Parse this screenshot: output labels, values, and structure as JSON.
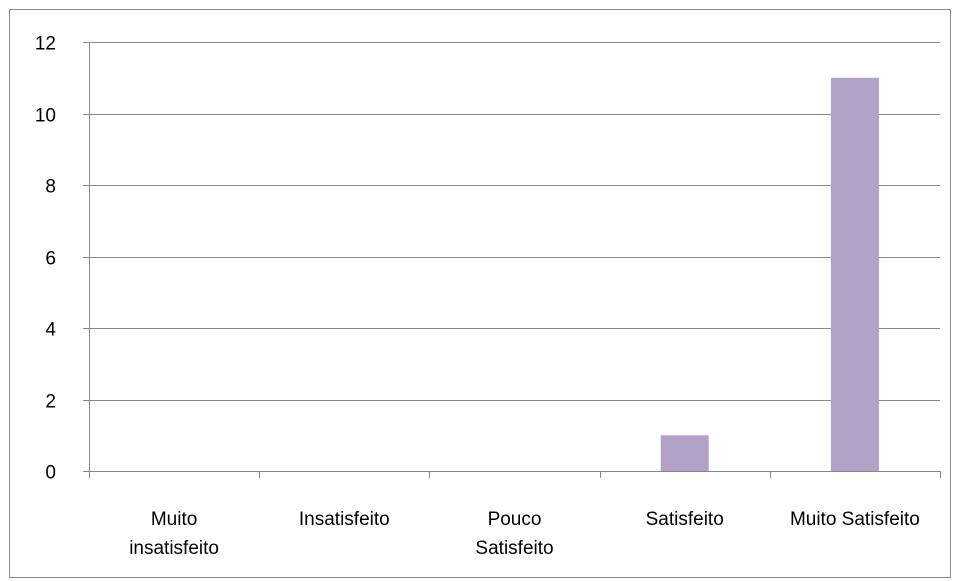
{
  "chart_data": {
    "type": "bar",
    "categories": [
      [
        "Muito",
        "insatisfeito"
      ],
      [
        "Insatisfeito"
      ],
      [
        "Pouco",
        "Satisfeito"
      ],
      [
        "Satisfeito"
      ],
      [
        "Muito Satisfeito"
      ]
    ],
    "values": [
      0,
      0,
      0,
      1,
      11
    ],
    "ylim": [
      0,
      12
    ],
    "yticks": [
      0,
      2,
      4,
      6,
      8,
      10,
      12
    ],
    "grid": true,
    "legend": "none",
    "colors": {
      "bar": "#b3a2c7",
      "grid": "#888888",
      "axis": "#888888",
      "frame": "#8c8c8c"
    }
  }
}
